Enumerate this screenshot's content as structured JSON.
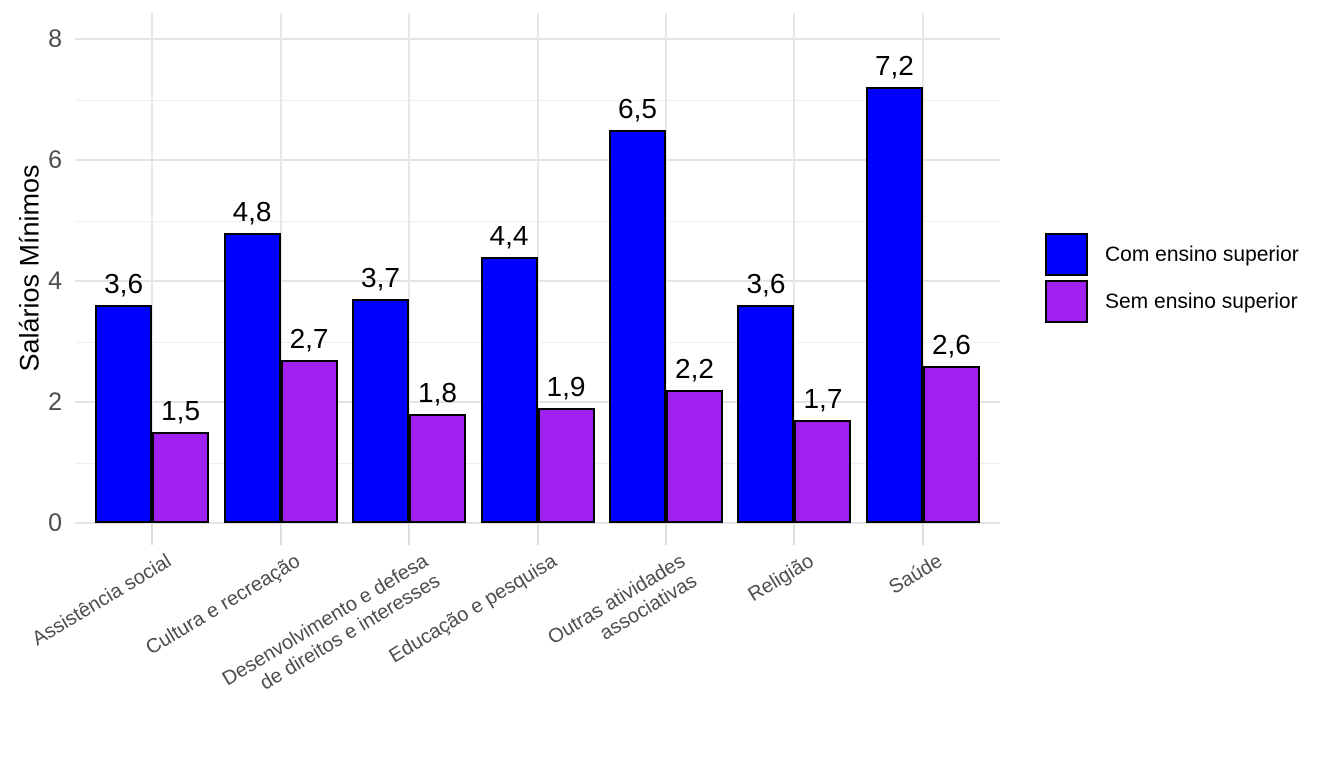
{
  "chart_data": {
    "type": "bar",
    "title": "",
    "xlabel": "",
    "ylabel": "Salários Mínimos",
    "categories": [
      "Assistência social",
      "Cultura e recreação",
      "Desenvolvimento e defesa\nde direitos e interesses",
      "Educação e pesquisa",
      "Outras atividades\nassociativas",
      "Religião",
      "Saúde"
    ],
    "series": [
      {
        "name": "Com ensino superior",
        "color": "#0000FF",
        "values": [
          3.6,
          4.8,
          3.7,
          4.4,
          6.5,
          3.6,
          7.2
        ],
        "value_labels": [
          "3,6",
          "4,8",
          "3,7",
          "4,4",
          "6,5",
          "3,6",
          "7,2"
        ]
      },
      {
        "name": "Sem ensino superior",
        "color": "#A020F0",
        "values": [
          1.5,
          2.7,
          1.8,
          1.9,
          2.2,
          1.7,
          2.6
        ],
        "value_labels": [
          "1,5",
          "2,7",
          "1,8",
          "1,9",
          "2,2",
          "1,7",
          "2,6"
        ]
      }
    ],
    "yticks": [
      0,
      2,
      4,
      6,
      8
    ],
    "minor_gridlines": [
      1,
      3,
      5,
      7
    ],
    "ylim": [
      0,
      8.43
    ],
    "grid": true,
    "legend_position": "right",
    "bar_outline_color": "#000000",
    "decimal_separator": ","
  },
  "theme": {
    "background": "#FFFFFF",
    "grid_major_color": "#E3E3E3",
    "grid_minor_color": "#EFEFEF",
    "axis_text_color": "#4D4D4D",
    "tick_mark_color": "#DCDCDC",
    "label_text_color": "#000000"
  }
}
